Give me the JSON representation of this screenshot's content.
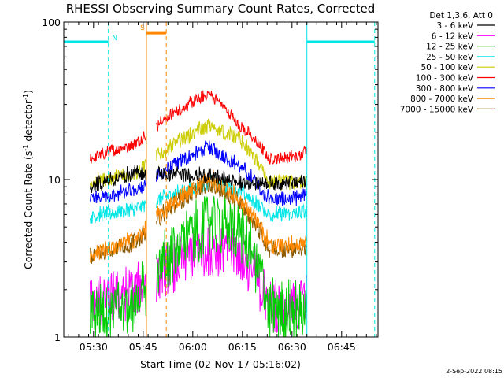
{
  "chart_data": {
    "type": "line",
    "title": "RHESSI Observing Summary Count Rates, Corrected",
    "xlabel": "Start Time (02-Nov-17 05:16:02)",
    "ylabel_pre": "Corrected Count Rate (s",
    "ylabel_exp1": "-1",
    "ylabel_mid": " detector",
    "ylabel_exp2": "-1",
    "ylabel_post": ")",
    "y_scale": "log",
    "ylim": [
      1,
      100
    ],
    "xlim_minutes": [
      5.0,
      100.0
    ],
    "x_ticks": [
      {
        "label": "05:30",
        "minutes": 14
      },
      {
        "label": "05:45",
        "minutes": 29
      },
      {
        "label": "06:00",
        "minutes": 44
      },
      {
        "label": "06:15",
        "minutes": 59
      },
      {
        "label": "06:30",
        "minutes": 74
      },
      {
        "label": "06:45",
        "minutes": 89
      }
    ],
    "y_ticks": [
      {
        "label": "1",
        "value": 1
      },
      {
        "label": "10",
        "value": 10
      },
      {
        "label": "100",
        "value": 100
      }
    ],
    "legend_title": "Det 1,3,6, Att 0",
    "series": [
      {
        "name": "3 - 6 keV",
        "color": "#000000",
        "base": [
          9,
          11,
          10.5,
          9.5,
          9.5,
          9.5,
          10
        ]
      },
      {
        "name": "6 - 12 keV",
        "color": "#ff00ff",
        "base": [
          1.6,
          2.0,
          3.8,
          3.5,
          1.6,
          1.6,
          1.8
        ]
      },
      {
        "name": "12 - 25 keV",
        "color": "#00cc00",
        "base": [
          1.5,
          1.6,
          5.5,
          5.0,
          1.5,
          1.5,
          1.5
        ]
      },
      {
        "name": "25 - 50 keV",
        "color": "#00e5e5",
        "base": [
          5.8,
          6.5,
          9.5,
          8.5,
          6.0,
          6.0,
          6.5
        ]
      },
      {
        "name": "50 - 100 keV",
        "color": "#cccc00",
        "base": [
          9.5,
          11,
          22,
          18,
          9.5,
          9.5,
          10
        ]
      },
      {
        "name": "100 - 300 keV",
        "color": "#ff0000",
        "base": [
          13.5,
          17,
          35,
          22,
          13.5,
          14,
          16
        ]
      },
      {
        "name": "300 - 800 keV",
        "color": "#0000ff",
        "base": [
          7.5,
          8.5,
          16,
          12,
          7.5,
          7.5,
          8
        ]
      },
      {
        "name": "800 - 7000 keV",
        "color": "#ff8800",
        "base": [
          3.3,
          4.2,
          10,
          7.5,
          3.8,
          3.8,
          4.0
        ]
      },
      {
        "name": "7000 - 15000 keV",
        "color": "#8b5a00",
        "base": [
          3.3,
          4.0,
          9.5,
          7.0,
          3.6,
          3.6,
          3.8
        ]
      }
    ],
    "base_minutes": [
      13,
      27,
      49,
      58,
      67,
      76,
      78.5
    ],
    "data_segments": [
      [
        13,
        30
      ],
      [
        33,
        78.5
      ]
    ],
    "markers": {
      "night": [
        {
          "start": 5.0,
          "end": 18.5,
          "label": "N"
        },
        {
          "start": 78.5,
          "end": 99.0,
          "label": ""
        }
      ],
      "night_color": "#00e5e5",
      "saa": [
        {
          "start": 30.0,
          "end": 36.0,
          "label": "S"
        }
      ],
      "saa_color": "#ff8800",
      "night_level": 75,
      "saa_level": 85
    },
    "timestamp": "2-Sep-2022 08:15"
  }
}
